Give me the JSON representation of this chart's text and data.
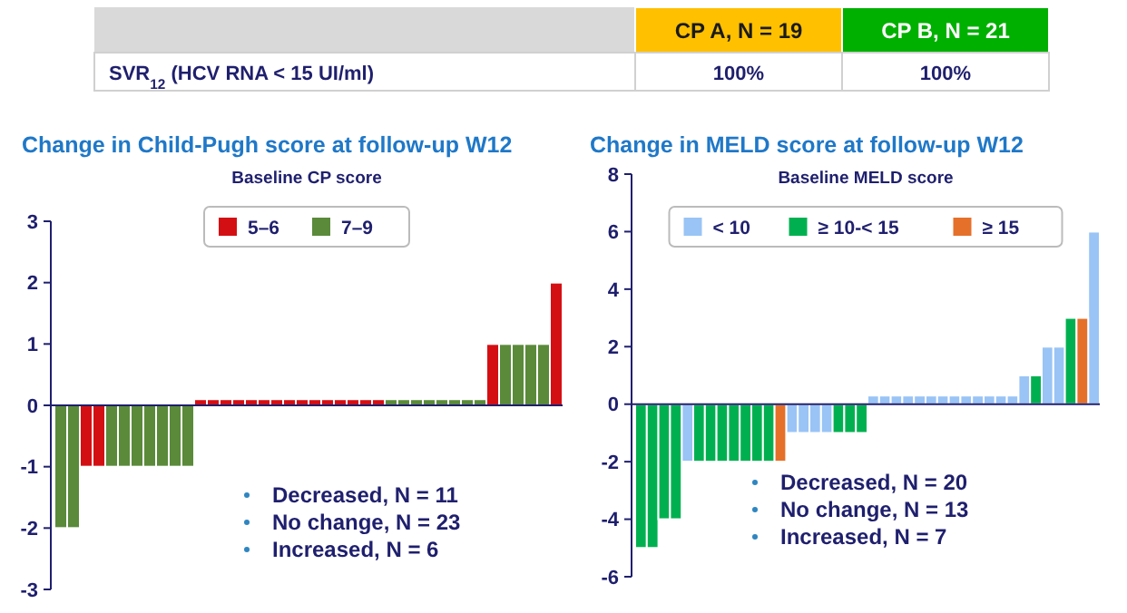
{
  "chart_data": [
    {
      "type": "other",
      "categories": [
        "CP A, N = 19",
        "CP B, N = 21"
      ],
      "colors": [
        "#ffc000",
        "#00b000"
      ],
      "annotations": [
        "SVR$_{12}$ (HCV RNA < 15 UI/ml)",
        "100%",
        "100%"
      ]
    },
    {
      "type": "bar",
      "title": "Change in Child-Pugh score at follow-up W12",
      "legend_title": "Baseline CP score",
      "legend": "top",
      "tick_labels": "y",
      "ylim": [
        -3,
        3
      ],
      "yticks": [
        -3,
        -2,
        -1,
        0,
        1,
        2,
        3
      ],
      "categories": [
        null,
        null,
        null,
        null,
        null,
        null,
        null,
        null,
        null,
        null,
        null,
        null,
        null,
        null,
        null,
        null,
        null,
        null,
        null,
        null,
        null,
        null,
        null,
        null,
        null,
        null,
        null,
        null,
        null,
        null,
        null,
        null,
        null,
        null,
        null,
        null,
        null,
        null,
        null,
        null
      ],
      "series": [
        {
          "name": "5–6",
          "color": "#d40f14",
          "values": [
            null,
            null,
            -1,
            -1,
            null,
            null,
            null,
            null,
            null,
            null,
            null,
            0.1,
            0.1,
            0.1,
            0.1,
            0.1,
            0.1,
            0.1,
            0.1,
            0.1,
            0.1,
            0.1,
            0.1,
            0.1,
            0.1,
            0.1,
            null,
            null,
            null,
            null,
            null,
            null,
            null,
            null,
            1,
            null,
            null,
            null,
            null,
            2
          ]
        },
        {
          "name": "7–9",
          "color": "#5a8a3a",
          "values": [
            -2,
            -2,
            null,
            null,
            -1,
            -1,
            -1,
            -1,
            -1,
            -1,
            -1,
            null,
            null,
            null,
            null,
            null,
            null,
            null,
            null,
            null,
            null,
            null,
            null,
            null,
            null,
            null,
            0.1,
            0.1,
            0.1,
            0.1,
            0.1,
            0.1,
            0.1,
            0.1,
            null,
            1,
            1,
            1,
            1,
            null
          ]
        }
      ],
      "ref_lines": [
        {
          "axis": "y",
          "value": 0,
          "color": "#1f1f6e"
        }
      ],
      "annotations": [
        "Decreased, N = 11",
        "No change, N = 23",
        "Increased, N = 6"
      ]
    },
    {
      "type": "bar",
      "title": "Change in MELD score at follow-up W12",
      "legend_title": "Baseline MELD score",
      "legend": "top",
      "tick_labels": "y",
      "ylim": [
        -6,
        8
      ],
      "yticks": [
        -6,
        -4,
        -2,
        0,
        2,
        4,
        6,
        8
      ],
      "categories": [
        null,
        null,
        null,
        null,
        null,
        null,
        null,
        null,
        null,
        null,
        null,
        null,
        null,
        null,
        null,
        null,
        null,
        null,
        null,
        null,
        null,
        null,
        null,
        null,
        null,
        null,
        null,
        null,
        null,
        null,
        null,
        null,
        null,
        null,
        null,
        null,
        null,
        null,
        null,
        null
      ],
      "series": [
        {
          "name": "< 10",
          "color": "#99c4f5",
          "values": [
            null,
            null,
            null,
            null,
            -2,
            null,
            null,
            null,
            null,
            null,
            null,
            null,
            null,
            -1,
            -1,
            -1,
            -1,
            null,
            null,
            null,
            0.3,
            0.3,
            0.3,
            0.3,
            0.3,
            0.3,
            0.3,
            0.3,
            0.3,
            0.3,
            0.3,
            0.3,
            0.3,
            1,
            null,
            2,
            2,
            null,
            null,
            6
          ]
        },
        {
          "name": "≥ 10-< 15",
          "color": "#00b050",
          "values": [
            -5,
            -5,
            -4,
            -4,
            null,
            -2,
            -2,
            -2,
            -2,
            -2,
            -2,
            -2,
            null,
            null,
            null,
            null,
            null,
            -1,
            -1,
            -1,
            null,
            null,
            null,
            null,
            null,
            null,
            null,
            null,
            null,
            null,
            null,
            null,
            null,
            null,
            1,
            null,
            null,
            3,
            null,
            null
          ]
        },
        {
          "name": "≥ 15",
          "color": "#e5702a",
          "values": [
            null,
            null,
            null,
            null,
            null,
            null,
            null,
            null,
            null,
            null,
            null,
            null,
            -2,
            null,
            null,
            null,
            null,
            null,
            null,
            null,
            null,
            null,
            null,
            null,
            null,
            null,
            null,
            null,
            null,
            null,
            null,
            null,
            null,
            null,
            null,
            null,
            null,
            null,
            3,
            null
          ]
        }
      ],
      "ref_lines": [
        {
          "axis": "y",
          "value": 0,
          "color": "#1f1f6e"
        }
      ],
      "annotations": [
        "Decreased, N = 20",
        "No change, N = 13",
        "Increased, N = 7"
      ]
    }
  ]
}
